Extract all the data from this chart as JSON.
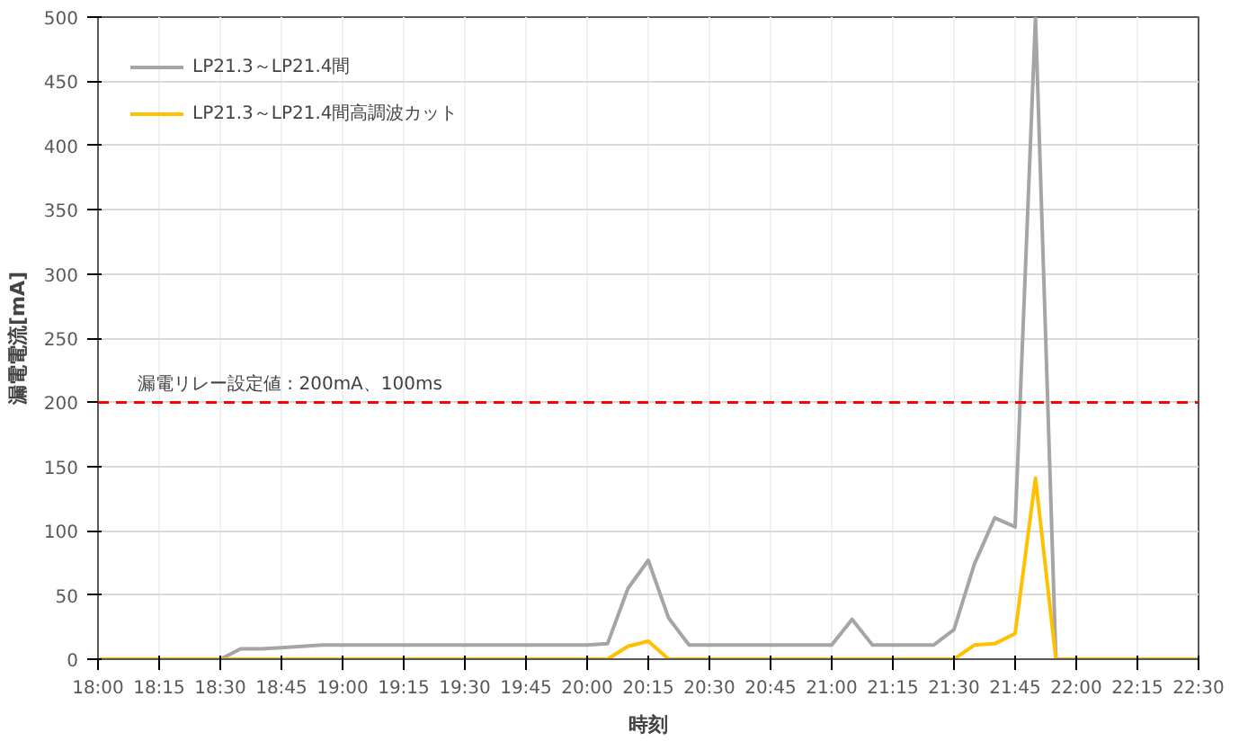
{
  "chart_data": {
    "type": "line",
    "xlabel": "時刻",
    "ylabel": "漏電電流[mA]",
    "x": [
      18,
      18.0833,
      18.1667,
      18.25,
      18.3333,
      18.4167,
      18.5,
      18.5833,
      18.6667,
      18.75,
      18.8333,
      18.9167,
      19,
      19.0833,
      19.1667,
      19.25,
      19.3333,
      19.4167,
      19.5,
      19.5833,
      19.6667,
      19.75,
      19.8333,
      19.9167,
      20,
      20.0833,
      20.1667,
      20.25,
      20.3333,
      20.4167,
      20.5,
      20.5833,
      20.6667,
      20.75,
      20.8333,
      20.9167,
      21,
      21.0833,
      21.1667,
      21.25,
      21.3333,
      21.4167,
      21.5,
      21.5833,
      21.6667,
      21.75,
      21.8333,
      21.9167,
      22,
      22.0833,
      22.1667,
      22.25,
      22.3333,
      22.4167,
      22.5
    ],
    "series": [
      {
        "name": "LP21.3～LP21.4間",
        "color": "#a5a5a5",
        "values": [
          0,
          0,
          0,
          0,
          0,
          0,
          0,
          8,
          8,
          9,
          10,
          11,
          11,
          11,
          11,
          11,
          11,
          11,
          11,
          11,
          11,
          11,
          11,
          11,
          11,
          12,
          55,
          77,
          32,
          11,
          11,
          11,
          11,
          11,
          11,
          11,
          11,
          31,
          11,
          11,
          11,
          11,
          23,
          74,
          110,
          103,
          500,
          0,
          0,
          0,
          0,
          0,
          0,
          0,
          0
        ]
      },
      {
        "name": "LP21.3～LP21.4間高調波カット",
        "color": "#ffc000",
        "values": [
          0,
          0,
          0,
          0,
          0,
          0,
          0,
          0,
          0,
          0,
          0,
          0,
          0,
          0,
          0,
          0,
          0,
          0,
          0,
          0,
          0,
          0,
          0,
          0,
          0,
          0,
          10,
          14,
          0,
          0,
          0,
          0,
          0,
          0,
          0,
          0,
          0,
          0,
          0,
          0,
          0,
          0,
          0,
          11,
          12,
          20,
          141,
          0,
          0,
          0,
          0,
          0,
          0,
          0,
          0
        ]
      }
    ],
    "xlim": [
      18,
      22.5
    ],
    "xticks": [
      {
        "value": 18,
        "label": "18:00"
      },
      {
        "value": 18.25,
        "label": "18:15"
      },
      {
        "value": 18.5,
        "label": "18:30"
      },
      {
        "value": 18.75,
        "label": "18:45"
      },
      {
        "value": 19,
        "label": "19:00"
      },
      {
        "value": 19.25,
        "label": "19:15"
      },
      {
        "value": 19.5,
        "label": "19:30"
      },
      {
        "value": 19.75,
        "label": "19:45"
      },
      {
        "value": 20,
        "label": "20:00"
      },
      {
        "value": 20.25,
        "label": "20:15"
      },
      {
        "value": 20.5,
        "label": "20:30"
      },
      {
        "value": 20.75,
        "label": "20:45"
      },
      {
        "value": 21,
        "label": "21:00"
      },
      {
        "value": 21.25,
        "label": "21:15"
      },
      {
        "value": 21.5,
        "label": "21:30"
      },
      {
        "value": 21.75,
        "label": "21:45"
      },
      {
        "value": 22,
        "label": "22:00"
      },
      {
        "value": 22.25,
        "label": "22:15"
      },
      {
        "value": 22.5,
        "label": "22:30"
      }
    ],
    "ylim": [
      0,
      500
    ],
    "yticks": [
      0,
      50,
      100,
      150,
      200,
      250,
      300,
      350,
      400,
      450,
      500
    ],
    "ref_lines": [
      {
        "axis": "y",
        "value": 200,
        "label": "漏電リレー設定値 : 200mA、100ms",
        "color": "#ff0000",
        "line_style": "dashed"
      }
    ],
    "grid": true,
    "legend": "top left",
    "marker": "none",
    "line_style": "solid"
  }
}
